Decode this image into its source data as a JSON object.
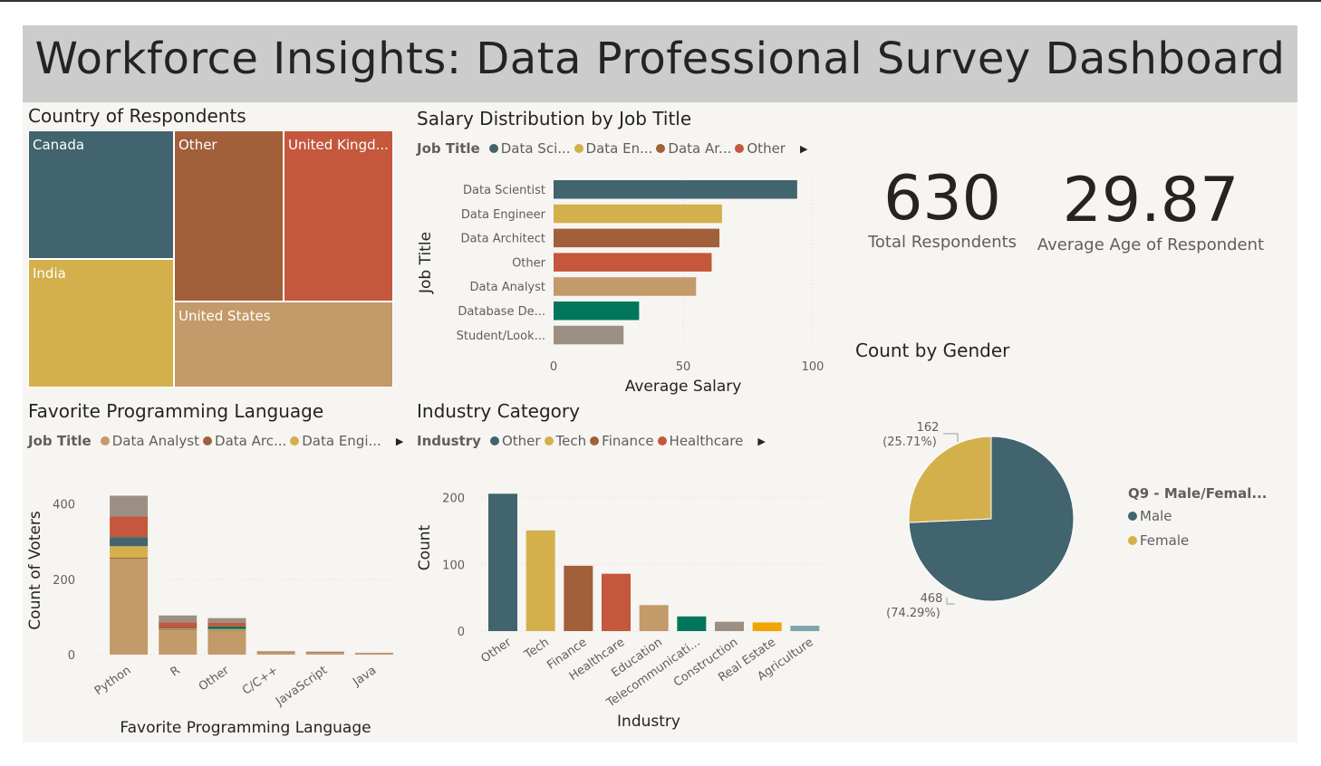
{
  "dashboard": {
    "title": "Workforce Insights: Data Professional Survey Dashboard"
  },
  "colors": {
    "teal": "#41646f",
    "gold": "#d3b04b",
    "brown": "#a1603a",
    "red": "#c4573c",
    "tan": "#c39a69",
    "green": "#01765a",
    "gray": "#9b8f84",
    "orange": "#f2a402",
    "lightblue": "#7fa4b0"
  },
  "kpis": {
    "total": {
      "value": "630",
      "label": "Total Respondents"
    },
    "age": {
      "value": "29.87",
      "label": "Average Age of Respondent"
    }
  },
  "treemap": {
    "title": "Country of Respondents",
    "cells": [
      {
        "label": "Canada",
        "color": "#41646f"
      },
      {
        "label": "Other",
        "color": "#a1603a"
      },
      {
        "label": "United Kingd...",
        "color": "#c4573c"
      },
      {
        "label": "India",
        "color": "#d3b04b"
      },
      {
        "label": "United States",
        "color": "#c39a69"
      }
    ]
  },
  "salary_chart": {
    "title": "Salary Distribution by Job Title",
    "legend": {
      "title": "Job Title",
      "items": [
        {
          "label": "Data Sci...",
          "color": "#41646f"
        },
        {
          "label": "Data En...",
          "color": "#d3b04b"
        },
        {
          "label": "Data Ar...",
          "color": "#a1603a"
        },
        {
          "label": "Other",
          "color": "#c4573c"
        }
      ]
    }
  },
  "language_chart": {
    "title": "Favorite Programming Language",
    "legend": {
      "title": "Job Title",
      "items": [
        {
          "label": "Data Analyst",
          "color": "#c39a69"
        },
        {
          "label": "Data Arc...",
          "color": "#a1603a"
        },
        {
          "label": "Data Engi...",
          "color": "#d3b04b"
        }
      ]
    }
  },
  "industry_chart": {
    "title": "Industry Category",
    "legend": {
      "title": "Industry",
      "items": [
        {
          "label": "Other",
          "color": "#41646f"
        },
        {
          "label": "Tech",
          "color": "#d3b04b"
        },
        {
          "label": "Finance",
          "color": "#a1603a"
        },
        {
          "label": "Healthcare",
          "color": "#c4573c"
        }
      ]
    }
  },
  "gender_chart": {
    "title": "Count by Gender",
    "legend": {
      "title": "Q9 - Male/Femal...",
      "items": [
        {
          "label": "Male",
          "color": "#41646f"
        },
        {
          "label": "Female",
          "color": "#d3b04b"
        }
      ]
    }
  },
  "chart_data": [
    {
      "type": "treemap",
      "title": "Country of Respondents",
      "categories": [
        "Canada",
        "Other",
        "United Kingd...",
        "India",
        "United States"
      ]
    },
    {
      "type": "bar",
      "orientation": "horizontal",
      "title": "Salary Distribution by Job Title",
      "xlabel": "Average Salary",
      "ylabel": "Job Title",
      "xlim": [
        0,
        100
      ],
      "xticks": [
        "0",
        "50",
        "100"
      ],
      "categories": [
        "Data Scientist",
        "Data Engineer",
        "Data Architect",
        "Other",
        "Data Analyst",
        "Database De...",
        "Student/Look..."
      ],
      "values": [
        94,
        65,
        64,
        61,
        55,
        33,
        27
      ],
      "colors": [
        "#41646f",
        "#d3b04b",
        "#a1603a",
        "#c4573c",
        "#c39a69",
        "#01765a",
        "#9b8f84"
      ],
      "grid": true
    },
    {
      "type": "bar",
      "stacked": true,
      "title": "Favorite Programming Language",
      "xlabel": "Favorite Programming Language",
      "ylabel": "Count of Voters",
      "ylim": [
        0,
        440
      ],
      "yticks": [
        "0",
        "200",
        "400"
      ],
      "categories": [
        "Python",
        "R",
        "Other",
        "C/C++",
        "JavaScript",
        "Java"
      ],
      "series": [
        {
          "name": "Data Analyst",
          "color": "#c39a69",
          "values": [
            255,
            65,
            62,
            6,
            5,
            3
          ]
        },
        {
          "name": "Data Arc...",
          "color": "#a1603a",
          "values": [
            3,
            2,
            2,
            0,
            0,
            0
          ]
        },
        {
          "name": "Data Engi...",
          "color": "#d3b04b",
          "values": [
            30,
            2,
            3,
            0,
            0,
            0
          ]
        },
        {
          "color": "#41646f",
          "values": [
            22,
            2,
            2,
            0,
            0,
            0
          ]
        },
        {
          "color": "#01765a",
          "values": [
            2,
            0,
            6,
            0,
            0,
            0
          ]
        },
        {
          "color": "#c4573c",
          "values": [
            55,
            15,
            10,
            1,
            1,
            1
          ]
        },
        {
          "color": "#9b8f84",
          "values": [
            55,
            18,
            12,
            2,
            2,
            1
          ]
        }
      ],
      "grid": true
    },
    {
      "type": "bar",
      "title": "Industry Category",
      "xlabel": "Industry",
      "ylabel": "Count",
      "ylim": [
        0,
        220
      ],
      "yticks": [
        "0",
        "100",
        "200"
      ],
      "categories": [
        "Other",
        "Tech",
        "Finance",
        "Healthcare",
        "Education",
        "Telecommunicati...",
        "Construction",
        "Real Estate",
        "Agriculture"
      ],
      "values": [
        206,
        151,
        98,
        86,
        39,
        22,
        14,
        13,
        8
      ],
      "colors": [
        "#41646f",
        "#d3b04b",
        "#a1603a",
        "#c4573c",
        "#c39a69",
        "#01765a",
        "#9b8f84",
        "#f2a402",
        "#7fa4b0"
      ],
      "grid": true
    },
    {
      "type": "pie",
      "title": "Count by Gender",
      "legend_title": "Q9 - Male/Femal...",
      "legend_position": "right",
      "categories": [
        "Male",
        "Female"
      ],
      "values": [
        468,
        162
      ],
      "data_labels": [
        {
          "count": "468",
          "percent": "(74.29%)"
        },
        {
          "count": "162",
          "percent": "(25.71%)"
        }
      ],
      "colors": [
        "#41646f",
        "#d3b04b"
      ]
    }
  ]
}
